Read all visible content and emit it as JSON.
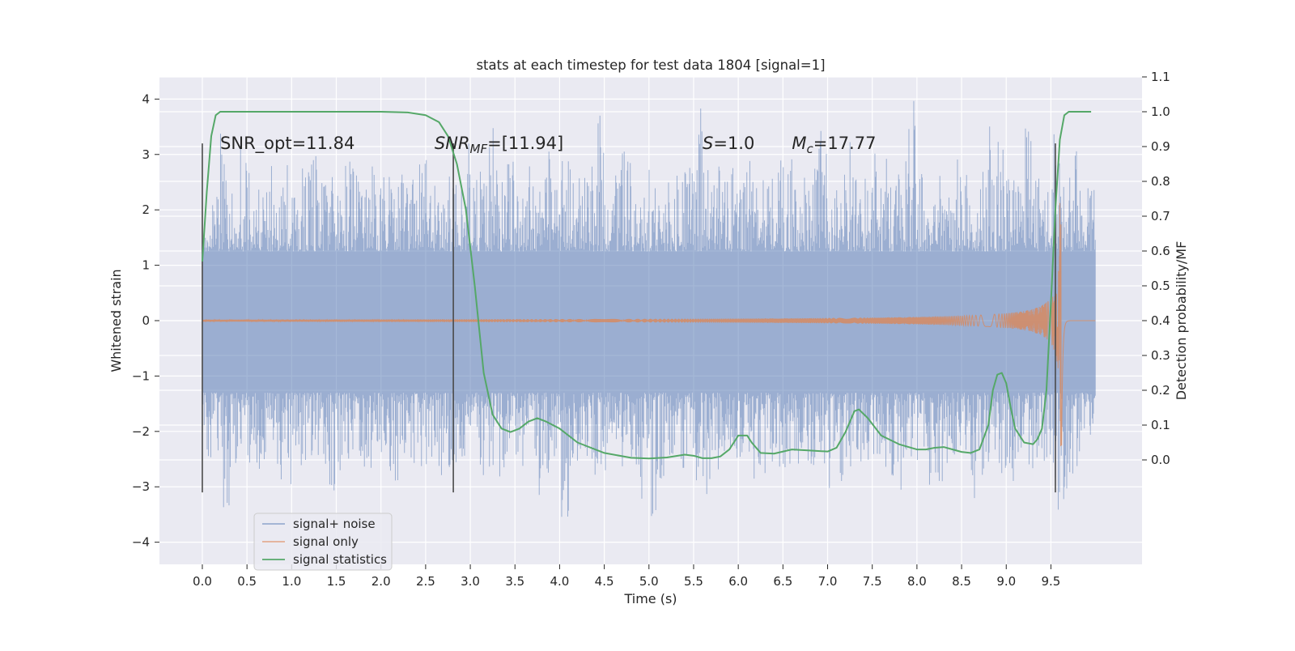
{
  "chart_data": {
    "type": "line",
    "title": "stats at each timestep for test data 1804 [signal=1]",
    "xlabel": "Time (s)",
    "ylabel": "Whitened strain",
    "ylabel_right": "Detection probability/MF",
    "xlim": [
      -0.48,
      10.52
    ],
    "ylim": [
      -4.4,
      4.4
    ],
    "ylim_right": [
      -0.3,
      1.1
    ],
    "x_ticks": [
      0.0,
      0.5,
      1.0,
      1.5,
      2.0,
      2.5,
      3.0,
      3.5,
      4.0,
      4.5,
      5.0,
      5.5,
      6.0,
      6.5,
      7.0,
      7.5,
      8.0,
      8.5,
      9.0,
      9.5
    ],
    "x_tick_labels": [
      "0.0",
      "0.5",
      "1.0",
      "1.5",
      "2.0",
      "2.5",
      "3.0",
      "3.5",
      "4.0",
      "4.5",
      "5.0",
      "5.5",
      "6.0",
      "6.5",
      "7.0",
      "7.5",
      "8.0",
      "8.5",
      "9.0",
      "9.5"
    ],
    "y_ticks": [
      4,
      3,
      2,
      1,
      0,
      -1,
      -2,
      -3,
      -4
    ],
    "y_tick_labels": [
      "4",
      "3",
      "2",
      "1",
      "0",
      "−1",
      "−2",
      "−3",
      "−4"
    ],
    "y_right_ticks": [
      1.1,
      1.0,
      0.9,
      0.8,
      0.7,
      0.6,
      0.5,
      0.4,
      0.3,
      0.2,
      0.1,
      0.0
    ],
    "y_right_tick_labels": [
      "1.1",
      "1.0",
      "0.9",
      "0.8",
      "0.7",
      "0.6",
      "0.5",
      "0.4",
      "0.3",
      "0.2",
      "0.1",
      "0.0"
    ],
    "grid": true,
    "legend_position": "lower-left",
    "annotations": [
      {
        "text": "SNR_opt=11.84",
        "x": 0.2,
        "y": 3.2
      },
      {
        "text_parts": [
          "SNR",
          "MF",
          "=[11.94]"
        ],
        "x": 2.6,
        "y": 3.2
      },
      {
        "text_parts": [
          "S",
          "",
          "=1.0"
        ],
        "x": 5.6,
        "y": 3.2
      },
      {
        "text_parts": [
          "M",
          "c",
          "=17.77"
        ],
        "x": 6.6,
        "y": 3.2
      }
    ],
    "vertical_markers": [
      {
        "x": 0.0,
        "y_from": -3.1,
        "y_to": 3.2
      },
      {
        "x": 2.81,
        "y_from": -3.1,
        "y_to": 3.2
      },
      {
        "x": 9.55,
        "y_from": -3.1,
        "y_to": 3.2
      }
    ],
    "series": [
      {
        "name": "signal+ noise",
        "color": "#4c72b0",
        "axis": "left",
        "t_range": [
          0.0,
          10.0
        ],
        "envelope_max": [
          1.6,
          2.3,
          3.4,
          2.7,
          3.3,
          2.9,
          2.4,
          2.8,
          2.5,
          3.1,
          2.7,
          2.9,
          3.0,
          2.6,
          2.8,
          2.4,
          2.9,
          2.8,
          2.5,
          3.2,
          2.7,
          2.6,
          2.9,
          2.7,
          3.3,
          3.1,
          2.7,
          2.9,
          2.5,
          3.6,
          2.8,
          2.8,
          3.7,
          2.6,
          2.9,
          2.4,
          2.8,
          2.6,
          3.1,
          2.6,
          2.9,
          3.0,
          2.6,
          2.8,
          3.7,
          2.5,
          2.8,
          3.4,
          2.7,
          2.6,
          2.8,
          2.5,
          3.2,
          2.7,
          2.9,
          4.0,
          2.8,
          3.0,
          2.6,
          2.9,
          2.7,
          3.3,
          2.8,
          2.6,
          2.9,
          3.1,
          3.0,
          2.6,
          2.8,
          3.8,
          2.7,
          2.9,
          3.3,
          2.6,
          2.8,
          3.1,
          3.0,
          2.7,
          3.2,
          4.1,
          2.7,
          2.8,
          3.6,
          2.5,
          3.0,
          2.9,
          2.4,
          2.7,
          3.6,
          3.3,
          2.6,
          2.9,
          3.5,
          3.0,
          2.7,
          3.5,
          2.8,
          3.2,
          2.5,
          2.6
        ],
        "envelope_min": [
          -2.6,
          -2.5,
          -3.4,
          -2.8,
          -2.6,
          -3.0,
          -2.7,
          -2.6,
          -2.9,
          -3.2,
          -2.6,
          -2.7,
          -2.5,
          -2.8,
          -3.1,
          -2.9,
          -2.6,
          -2.7,
          -2.8,
          -2.6,
          -2.7,
          -2.9,
          -2.5,
          -2.8,
          -2.7,
          -3.1,
          -3.0,
          -2.8,
          -2.6,
          -2.7,
          -2.5,
          -2.9,
          -2.7,
          -3.1,
          -2.6,
          -2.8,
          -2.5,
          -3.4,
          -2.9,
          -2.6,
          -3.8,
          -2.8,
          -2.7,
          -2.9,
          -2.6,
          -3.0,
          -2.7,
          -2.8,
          -2.6,
          -3.3,
          -3.7,
          -2.9,
          -2.6,
          -2.8,
          -2.7,
          -3.2,
          -3.9,
          -2.8,
          -2.6,
          -2.9,
          -2.7,
          -3.0,
          -2.8,
          -2.6,
          -2.7,
          -3.1,
          -2.9,
          -2.6,
          -2.8,
          -3.3,
          -3.8,
          -2.9,
          -2.7,
          -3.0,
          -2.6,
          -2.8,
          -2.7,
          -2.9,
          -3.1,
          -2.6,
          -2.8,
          -3.0,
          -2.9,
          -2.7,
          -2.8,
          -2.6,
          -3.6,
          -2.9,
          -2.7,
          -2.8,
          -3.0,
          -2.6,
          -2.7,
          -2.9,
          -2.8,
          -3.5,
          -3.3,
          -2.8,
          -2.6,
          -2.2
        ]
      },
      {
        "name": "signal only",
        "color": "#dd8452",
        "axis": "left",
        "t_range": [
          0.0,
          10.0
        ],
        "merger_time": 9.62,
        "peak_amplitude": 2.3
      },
      {
        "name": "signal statistics",
        "color": "#55a868",
        "axis": "right",
        "x": [
          0.0,
          0.05,
          0.1,
          0.15,
          0.2,
          0.3,
          0.5,
          1.0,
          1.5,
          2.0,
          2.3,
          2.5,
          2.65,
          2.75,
          2.85,
          2.95,
          3.05,
          3.15,
          3.25,
          3.35,
          3.45,
          3.55,
          3.65,
          3.75,
          3.85,
          4.0,
          4.2,
          4.5,
          4.8,
          5.0,
          5.2,
          5.4,
          5.5,
          5.6,
          5.7,
          5.8,
          5.9,
          6.0,
          6.05,
          6.1,
          6.15,
          6.25,
          6.4,
          6.6,
          6.8,
          7.0,
          7.1,
          7.2,
          7.3,
          7.35,
          7.45,
          7.6,
          7.8,
          8.0,
          8.1,
          8.2,
          8.3,
          8.4,
          8.5,
          8.6,
          8.7,
          8.8,
          8.85,
          8.9,
          8.95,
          9.0,
          9.05,
          9.1,
          9.2,
          9.3,
          9.35,
          9.4,
          9.45,
          9.5,
          9.55,
          9.6,
          9.65,
          9.7,
          9.8,
          9.95
        ],
        "values": [
          0.57,
          0.77,
          0.93,
          0.99,
          1.0,
          1.0,
          1.0,
          1.0,
          1.0,
          1.0,
          0.998,
          0.99,
          0.97,
          0.93,
          0.85,
          0.72,
          0.5,
          0.25,
          0.13,
          0.09,
          0.08,
          0.09,
          0.11,
          0.12,
          0.11,
          0.09,
          0.05,
          0.02,
          0.006,
          0.004,
          0.007,
          0.015,
          0.012,
          0.005,
          0.005,
          0.01,
          0.03,
          0.07,
          0.07,
          0.07,
          0.05,
          0.02,
          0.018,
          0.03,
          0.027,
          0.024,
          0.035,
          0.08,
          0.14,
          0.145,
          0.12,
          0.07,
          0.045,
          0.03,
          0.03,
          0.035,
          0.037,
          0.03,
          0.023,
          0.02,
          0.03,
          0.1,
          0.2,
          0.245,
          0.25,
          0.22,
          0.15,
          0.09,
          0.05,
          0.045,
          0.06,
          0.09,
          0.2,
          0.45,
          0.72,
          0.92,
          0.99,
          1.0,
          1.0,
          1.0
        ]
      }
    ]
  }
}
